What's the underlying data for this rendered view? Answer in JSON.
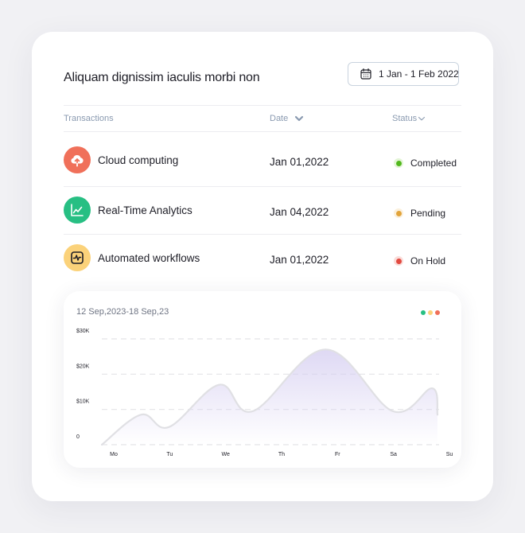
{
  "header": {
    "title": "Aliquam dignissim iaculis morbi non",
    "date_range_button": {
      "label": "1 Jan - 1 Feb 2022",
      "icon": "calendar-icon"
    }
  },
  "table": {
    "columns": {
      "transactions": "Transactions",
      "date": "Date",
      "status": "Status"
    },
    "rows": [
      {
        "name": "Cloud computing",
        "date": "Jan 01,2022",
        "status": "Completed",
        "icon": "cloud-upload-icon",
        "icon_bg": "#f0705a",
        "status_color": "#52b81e",
        "status_halo": "#e3f5d6"
      },
      {
        "name": "Real-Time Analytics",
        "date": "Jan 04,2022",
        "status": "Pending",
        "icon": "line-chart-icon",
        "icon_bg": "#27bf83",
        "status_color": "#e2a43b",
        "status_halo": "#fbf0dc"
      },
      {
        "name": "Automated workflows",
        "date": "Jan 01,2022",
        "status": "On Hold",
        "icon": "activity-icon",
        "icon_bg": "#fbd27a",
        "status_color": "#e24a40",
        "status_halo": "#fadcd9"
      }
    ]
  },
  "chart": {
    "range_label": "12 Sep,2023-18 Sep,23",
    "legend_colors": [
      "#27bf83",
      "#fbd27a",
      "#f0705a"
    ]
  },
  "chart_data": {
    "type": "area",
    "title": "",
    "xlabel": "",
    "ylabel": "",
    "categories": [
      "Mo",
      "Tu",
      "We",
      "Th",
      "Fr",
      "Sa",
      "Su"
    ],
    "x": [
      0,
      0.7,
      1.2,
      2.1,
      2.7,
      4.0,
      5.2,
      5.9,
      6.0
    ],
    "values": [
      0,
      8.5,
      5,
      17,
      9.5,
      27,
      9.5,
      16,
      8.5
    ],
    "yticks": [
      {
        "value": 0,
        "label": "0"
      },
      {
        "value": 10,
        "label": "$10K"
      },
      {
        "value": 20,
        "label": "$20K"
      },
      {
        "value": 30,
        "label": "$30K"
      }
    ],
    "ylim": [
      0,
      30
    ],
    "grid": "dashed-horizontal",
    "line_color": "#e0e0e4",
    "fill_color": "#d6cff1"
  }
}
